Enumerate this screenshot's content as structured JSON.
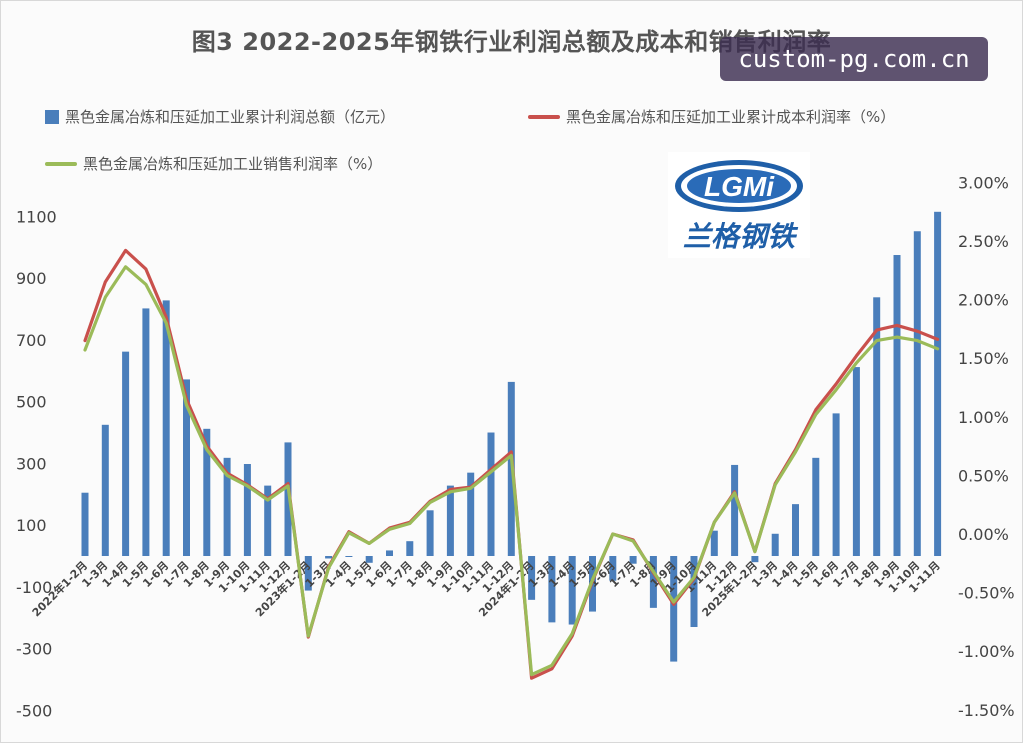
{
  "title": "图3 2022-2025年钢铁行业利润总额及成本和销售利润率",
  "watermark": "custom-pg.com.cn",
  "logo": {
    "text_en": "LGMi",
    "text_cn": "兰格钢铁"
  },
  "colors": {
    "bar": "#4a7ebb",
    "cost_line": "#c9504c",
    "sales_line": "#9bbb59"
  },
  "chart_data": {
    "type": "bar",
    "categories": [
      "2022年1-2月",
      "1-3月",
      "1-4月",
      "1-5月",
      "1-6月",
      "1-7月",
      "1-8月",
      "1-9月",
      "1-10月",
      "1-11月",
      "1-12月",
      "2023年1-2月",
      "1-3月",
      "1-4月",
      "1-5月",
      "1-6月",
      "1-7月",
      "1-8月",
      "1-9月",
      "1-10月",
      "1-11月",
      "1-12月",
      "2024年1-2月",
      "1-3月",
      "1-4月",
      "1-5月",
      "1-6月",
      "1-7月",
      "1-8月",
      "1-9月",
      "1-10月",
      "1-11月",
      "1-12月",
      "2025年1-2月",
      "1-3月",
      "1-4月",
      "1-5月",
      "1-6月",
      "1-7月",
      "1-8月",
      "1-9月",
      "1-10月",
      "1-11月"
    ],
    "series": [
      {
        "name": "黑色金属冶炼和压延加工业累计利润总额（亿元）",
        "type": "bar",
        "axis": "left",
        "values": [
          205,
          425,
          662,
          802,
          828,
          572,
          412,
          318,
          298,
          228,
          368,
          -112,
          -8,
          0,
          -22,
          18,
          48,
          148,
          228,
          270,
          400,
          564,
          -142,
          -215,
          -222,
          -180,
          -80,
          -25,
          -168,
          -342,
          -230,
          82,
          295,
          -20,
          72,
          168,
          318,
          462,
          612,
          838,
          975,
          1052,
          1115
        ]
      },
      {
        "name": "黑色金属冶炼和压延加工业累计成本利润率（%）",
        "type": "line",
        "axis": "right",
        "values": [
          1.65,
          2.15,
          2.42,
          2.26,
          1.85,
          1.15,
          0.75,
          0.52,
          0.42,
          0.3,
          0.43,
          -0.88,
          -0.28,
          0.02,
          -0.08,
          0.05,
          0.1,
          0.28,
          0.38,
          0.4,
          0.55,
          0.7,
          -1.23,
          -1.15,
          -0.87,
          -0.4,
          0.0,
          -0.05,
          -0.33,
          -0.6,
          -0.38,
          0.1,
          0.36,
          -0.15,
          0.43,
          0.72,
          1.06,
          1.28,
          1.52,
          1.74,
          1.78,
          1.73,
          1.66
        ]
      },
      {
        "name": "黑色金属冶炼和压延加工业销售利润率（%）",
        "type": "line",
        "axis": "right",
        "values": [
          1.57,
          2.02,
          2.28,
          2.13,
          1.8,
          1.1,
          0.72,
          0.5,
          0.41,
          0.29,
          0.41,
          -0.87,
          -0.29,
          0.01,
          -0.08,
          0.04,
          0.09,
          0.27,
          0.36,
          0.39,
          0.53,
          0.67,
          -1.2,
          -1.12,
          -0.85,
          -0.39,
          0.0,
          -0.06,
          -0.32,
          -0.58,
          -0.37,
          0.1,
          0.35,
          -0.15,
          0.42,
          0.7,
          1.02,
          1.23,
          1.46,
          1.65,
          1.68,
          1.65,
          1.58
        ]
      }
    ],
    "y_left": {
      "ticks": [
        "1100",
        "900",
        "700",
        "500",
        "300",
        "100",
        "-100",
        "-300",
        "-500"
      ],
      "lim": [
        -500,
        1100
      ]
    },
    "y_right": {
      "ticks": [
        "3.00%",
        "2.50%",
        "2.00%",
        "1.50%",
        "1.00%",
        "0.50%",
        "0.00%",
        "-0.50%",
        "-1.00%",
        "-1.50%"
      ],
      "lim": [
        -1.5,
        3.0
      ]
    },
    "legend": "top",
    "grid": false
  }
}
